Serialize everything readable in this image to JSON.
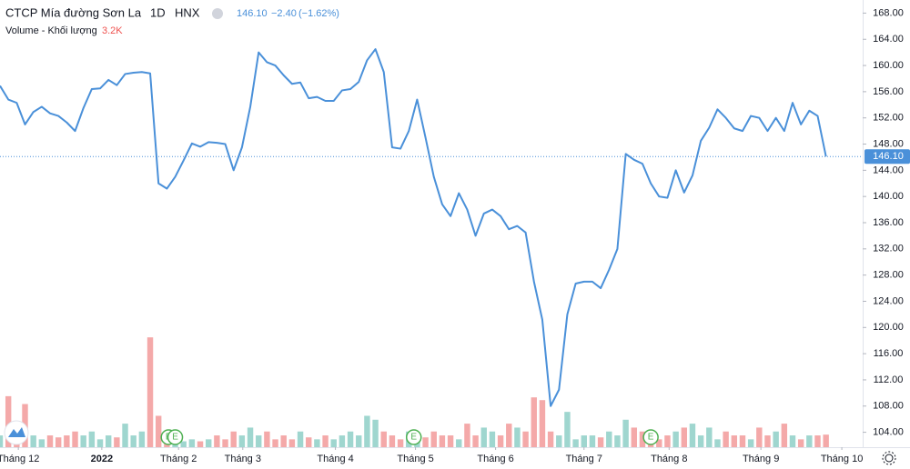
{
  "chart_data": {
    "type": "line",
    "title": "CTCP Mía đường Sơn La",
    "interval": "1D",
    "exchange": "HNX",
    "quote": {
      "last": "146.10",
      "change": "−2.40",
      "change_pct": "(−1.62%)"
    },
    "volume_title": "Volume - Khối lượng",
    "volume_last": "3.2K",
    "last_price_label": "146.10",
    "color": "#4a90d9",
    "up_color": "#9fd6cf",
    "down_color": "#f4a9a9",
    "x": [
      0,
      1,
      2,
      3,
      4,
      5,
      6,
      7,
      8,
      9,
      10,
      11,
      12,
      13,
      14,
      15,
      16,
      17,
      18,
      19,
      20,
      21,
      22,
      23,
      24,
      25,
      26,
      27,
      28,
      29,
      30,
      31,
      32,
      33,
      34,
      35,
      36,
      37,
      38,
      39,
      40,
      41,
      42,
      43,
      44,
      45,
      46,
      47,
      48,
      49,
      50,
      51,
      52,
      53,
      54,
      55,
      56,
      57,
      58,
      59,
      60,
      61,
      62,
      63,
      64,
      65,
      66,
      67,
      68,
      69,
      70,
      71,
      72,
      73,
      74,
      75,
      76,
      77,
      78,
      79,
      80,
      81,
      82,
      83,
      84,
      85,
      86,
      87,
      88,
      89,
      90,
      91,
      92,
      93,
      94,
      95,
      96,
      97,
      98,
      99
    ],
    "values": [
      156.9,
      154.8,
      154.3,
      151,
      152.9,
      153.7,
      152.7,
      152.3,
      151.3,
      150,
      153.5,
      156.4,
      156.5,
      157.8,
      157,
      158.7,
      158.9,
      159,
      158.8,
      142,
      141.2,
      143,
      145.5,
      148.1,
      147.6,
      148.3,
      148.2,
      148,
      144,
      147.5,
      153.7,
      162,
      160.5,
      160,
      158.5,
      157.2,
      157.4,
      155,
      155.2,
      154.6,
      154.6,
      156.2,
      156.4,
      157.5,
      160.8,
      162.5,
      159,
      147.5,
      147.3,
      150,
      154.8,
      149,
      143,
      138.8,
      137,
      140.5,
      138,
      134,
      137.4,
      138,
      137,
      135,
      135.5,
      134.5,
      127,
      121.2,
      108,
      110.5,
      122,
      126.7,
      127,
      127,
      126,
      128.8,
      132,
      146.5,
      145.6,
      145,
      142,
      140,
      139.8,
      144,
      140.6,
      143.2,
      148.5,
      150.5,
      153.3,
      152,
      150.4,
      150,
      152.3,
      152,
      150,
      152,
      150,
      154.3,
      151,
      153.1,
      152.3,
      146.1
    ],
    "volume": [
      3,
      13,
      4,
      11,
      3,
      2,
      3,
      2.5,
      3,
      4,
      3,
      4,
      2,
      3,
      2.5,
      6,
      3,
      4,
      28,
      8,
      4,
      2,
      1.5,
      2,
      1.5,
      2,
      3,
      2,
      4,
      3,
      5,
      3,
      4,
      2,
      3,
      2,
      4,
      2.5,
      2,
      3,
      2,
      3,
      4,
      3,
      8,
      7,
      4,
      3,
      2,
      4,
      3,
      2.5,
      4,
      3,
      3,
      2,
      6,
      3,
      5,
      4,
      3,
      6,
      5,
      4,
      12.7,
      12,
      4,
      3,
      9,
      2,
      3,
      3,
      2.5,
      4,
      3,
      7,
      5,
      4,
      3,
      2,
      3,
      4,
      5,
      6,
      3,
      5,
      2,
      4,
      3,
      3,
      2,
      5,
      3,
      4,
      6,
      3,
      2,
      3,
      3,
      3.2
    ],
    "volume_ylim": [
      0,
      114
    ],
    "xlim": [
      0,
      103.4
    ],
    "xticks": [
      {
        "value": 2.2,
        "label": "Tháng 12"
      },
      {
        "value": 12.2,
        "label": "2022"
      },
      {
        "value": 21.4,
        "label": "Tháng 2"
      },
      {
        "value": 29.1,
        "label": "Tháng 3"
      },
      {
        "value": 40.2,
        "label": "Tháng 4"
      },
      {
        "value": 49.8,
        "label": "Tháng 5"
      },
      {
        "value": 59.4,
        "label": "Tháng 6"
      },
      {
        "value": 70,
        "label": "Tháng 7"
      },
      {
        "value": 80.2,
        "label": "Tháng 8"
      },
      {
        "value": 91.2,
        "label": "Tháng 9"
      },
      {
        "value": 100.9,
        "label": "Tháng 10"
      }
    ],
    "ylim": [
      102,
      170
    ],
    "yticks": [
      {
        "value": 104,
        "label": "104.00"
      },
      {
        "value": 108,
        "label": "108.00"
      },
      {
        "value": 112,
        "label": "112.00"
      },
      {
        "value": 116,
        "label": "116.00"
      },
      {
        "value": 120,
        "label": "120.00"
      },
      {
        "value": 124,
        "label": "124.00"
      },
      {
        "value": 128,
        "label": "128.00"
      },
      {
        "value": 132,
        "label": "132.00"
      },
      {
        "value": 136,
        "label": "136.00"
      },
      {
        "value": 140,
        "label": "140.00"
      },
      {
        "value": 144,
        "label": "144.00"
      },
      {
        "value": 148,
        "label": "148.00"
      },
      {
        "value": 152,
        "label": "152.00"
      },
      {
        "value": 156,
        "label": "156.00"
      },
      {
        "value": 160,
        "label": "160.00"
      },
      {
        "value": 164,
        "label": "164.00"
      },
      {
        "value": 168,
        "label": "168.00"
      }
    ],
    "events": [
      {
        "x": 20.2,
        "label": "E"
      },
      {
        "x": 21.0,
        "label": "E"
      },
      {
        "x": 49.6,
        "label": "E"
      },
      {
        "x": 78.0,
        "label": "E"
      }
    ]
  }
}
